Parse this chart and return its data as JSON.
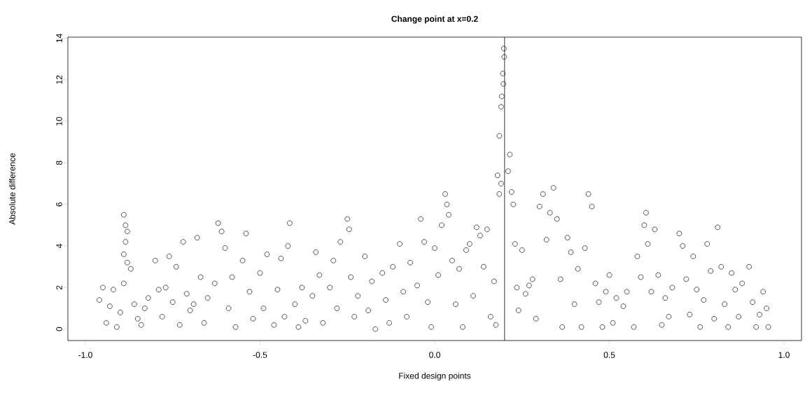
{
  "chart_data": {
    "type": "scatter",
    "title": "Change point at x=0.2",
    "xlabel": "Fixed design points",
    "ylabel": "Absolute difference",
    "x": [
      -0.96,
      -0.95,
      -0.94,
      -0.93,
      -0.92,
      -0.91,
      -0.9,
      -0.89,
      -0.885,
      -0.88,
      -0.885,
      -0.89,
      -0.88,
      -0.87,
      -0.89,
      -0.86,
      -0.85,
      -0.84,
      -0.83,
      -0.82,
      -0.8,
      -0.79,
      -0.78,
      -0.77,
      -0.76,
      -0.75,
      -0.74,
      -0.73,
      -0.72,
      -0.71,
      -0.7,
      -0.69,
      -0.68,
      -0.67,
      -0.66,
      -0.65,
      -0.63,
      -0.62,
      -0.61,
      -0.6,
      -0.59,
      -0.58,
      -0.57,
      -0.55,
      -0.54,
      -0.53,
      -0.52,
      -0.5,
      -0.49,
      -0.48,
      -0.46,
      -0.45,
      -0.44,
      -0.43,
      -0.42,
      -0.415,
      -0.4,
      -0.39,
      -0.38,
      -0.37,
      -0.35,
      -0.34,
      -0.33,
      -0.32,
      -0.3,
      -0.29,
      -0.28,
      -0.27,
      -0.25,
      -0.245,
      -0.24,
      -0.23,
      -0.22,
      -0.2,
      -0.19,
      -0.18,
      -0.17,
      -0.15,
      -0.14,
      -0.13,
      -0.12,
      -0.1,
      -0.09,
      -0.08,
      -0.07,
      -0.05,
      -0.04,
      -0.03,
      -0.02,
      -0.01,
      0.0,
      0.01,
      0.02,
      0.03,
      0.035,
      0.04,
      0.05,
      0.06,
      0.07,
      0.08,
      0.09,
      0.1,
      0.11,
      0.12,
      0.13,
      0.14,
      0.15,
      0.16,
      0.17,
      0.175,
      0.18,
      0.185,
      0.19,
      0.192,
      0.195,
      0.198,
      0.199,
      0.197,
      0.185,
      0.19,
      0.21,
      0.215,
      0.22,
      0.225,
      0.23,
      0.235,
      0.24,
      0.25,
      0.26,
      0.27,
      0.28,
      0.29,
      0.3,
      0.31,
      0.32,
      0.33,
      0.34,
      0.35,
      0.36,
      0.365,
      0.38,
      0.39,
      0.4,
      0.41,
      0.42,
      0.43,
      0.44,
      0.45,
      0.46,
      0.47,
      0.48,
      0.49,
      0.5,
      0.51,
      0.52,
      0.54,
      0.55,
      0.57,
      0.58,
      0.59,
      0.6,
      0.605,
      0.61,
      0.62,
      0.63,
      0.64,
      0.65,
      0.66,
      0.67,
      0.68,
      0.7,
      0.71,
      0.72,
      0.73,
      0.74,
      0.75,
      0.76,
      0.77,
      0.78,
      0.79,
      0.8,
      0.81,
      0.82,
      0.83,
      0.84,
      0.85,
      0.86,
      0.87,
      0.88,
      0.9,
      0.91,
      0.92,
      0.93,
      0.94,
      0.95,
      0.955
    ],
    "values": [
      1.4,
      2.0,
      0.3,
      1.1,
      1.9,
      0.1,
      0.8,
      5.5,
      5.0,
      4.7,
      4.2,
      3.6,
      3.2,
      2.9,
      2.2,
      1.2,
      0.5,
      0.2,
      1.0,
      1.5,
      3.3,
      1.9,
      0.6,
      2.0,
      3.5,
      1.3,
      3.0,
      0.2,
      4.2,
      1.7,
      0.9,
      1.2,
      4.4,
      2.5,
      0.3,
      1.5,
      2.2,
      5.1,
      4.7,
      3.9,
      1.0,
      2.5,
      0.1,
      3.3,
      4.6,
      1.8,
      0.5,
      2.7,
      1.0,
      3.6,
      0.2,
      1.9,
      3.4,
      0.6,
      4.0,
      5.1,
      1.2,
      0.1,
      2.0,
      0.4,
      1.6,
      3.7,
      2.6,
      0.3,
      2.0,
      3.3,
      1.0,
      4.2,
      5.3,
      4.8,
      2.5,
      0.6,
      1.6,
      3.5,
      0.9,
      2.3,
      0.0,
      2.7,
      1.4,
      0.3,
      3.0,
      4.1,
      1.8,
      0.6,
      3.2,
      2.1,
      5.3,
      4.2,
      1.3,
      0.1,
      3.9,
      2.6,
      5.0,
      6.5,
      6.0,
      5.5,
      3.3,
      1.2,
      2.9,
      0.1,
      3.8,
      4.1,
      1.6,
      4.9,
      4.5,
      3.0,
      4.8,
      0.6,
      2.3,
      0.2,
      7.4,
      9.3,
      10.7,
      11.2,
      12.3,
      13.5,
      13.1,
      11.8,
      6.5,
      7.0,
      7.6,
      8.4,
      6.6,
      6.0,
      4.1,
      2.0,
      0.9,
      3.8,
      1.7,
      2.1,
      2.4,
      0.5,
      5.9,
      6.5,
      4.3,
      5.6,
      6.8,
      5.3,
      2.4,
      0.1,
      4.4,
      3.7,
      1.2,
      2.9,
      0.1,
      3.9,
      6.5,
      5.9,
      2.2,
      1.3,
      0.1,
      1.8,
      2.6,
      0.3,
      1.5,
      1.1,
      1.8,
      0.1,
      3.5,
      2.5,
      5.0,
      5.6,
      4.1,
      1.8,
      4.8,
      2.6,
      0.2,
      1.5,
      0.6,
      2.0,
      4.6,
      4.0,
      2.4,
      0.7,
      3.5,
      1.9,
      0.1,
      1.4,
      4.1,
      2.8,
      0.5,
      4.9,
      3.0,
      1.2,
      0.1,
      2.7,
      1.9,
      0.6,
      2.2,
      3.0,
      1.3,
      0.1,
      0.7,
      1.8,
      1.0,
      0.1
    ],
    "color": "#000000",
    "marker": "circle",
    "grid": false,
    "xlim": [
      -1.05,
      1.05
    ],
    "ylim": [
      -0.55,
      14.05
    ],
    "xticks": [
      {
        "value": -1.0,
        "label": "-1.0"
      },
      {
        "value": -0.5,
        "label": "-0.5"
      },
      {
        "value": 0.0,
        "label": "0.0"
      },
      {
        "value": 0.5,
        "label": "0.5"
      },
      {
        "value": 1.0,
        "label": "1.0"
      }
    ],
    "yticks": [
      0,
      2,
      4,
      6,
      8,
      10,
      12,
      14
    ],
    "ref_lines": [
      {
        "axis": "x",
        "value": 0.2,
        "color": "#000000"
      }
    ]
  }
}
